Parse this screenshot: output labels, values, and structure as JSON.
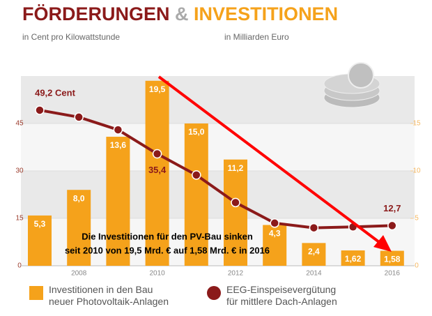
{
  "chart_data": {
    "type": "bar-line",
    "title": [
      "FÖRDERUNGEN",
      "&",
      "INVESTITIONEN"
    ],
    "left_subtitle": "in Cent pro Kilowattstunde",
    "right_subtitle": "in Milliarden Euro",
    "categories": [
      null,
      "2008",
      null,
      "2010",
      null,
      "2012",
      null,
      "2014",
      null,
      "2016"
    ],
    "series": [
      {
        "name": "Investitionen in den Bau neuer Photovoltaik-Anlagen",
        "color": "#f5a21b",
        "kind": "bar",
        "axis": "y2",
        "values": [
          5.3,
          8.0,
          13.6,
          19.5,
          15.0,
          11.2,
          4.3,
          2.4,
          1.62,
          1.58
        ],
        "value_labels": [
          "5,3",
          "8,0",
          "13,6",
          "19,5",
          "15,0",
          "11,2",
          "4,3",
          "2,4",
          "1,62",
          "1,58"
        ]
      },
      {
        "name": "EEG-Einspeisevergütung für mittlere Dach-Anlagen",
        "color": "#8b1a1a",
        "kind": "line",
        "axis": "y",
        "values": [
          49.2,
          47.0,
          43.0,
          35.4,
          28.7,
          20.0,
          13.5,
          12.0,
          12.3,
          12.7
        ],
        "value_labels": [
          "49,2 Cent",
          null,
          null,
          "35,4",
          null,
          null,
          null,
          null,
          null,
          "12,7"
        ]
      }
    ],
    "ylim": [
      0,
      60
    ],
    "yticks": [
      0,
      15,
      30,
      45
    ],
    "y2lim": [
      0,
      20
    ],
    "y2ticks": [
      0,
      5,
      10,
      15
    ],
    "annotation": [
      "Die Investitionen für den PV-Bau sinken",
      "seit 2010 von 19,5 Mrd. € auf 1,58 Mrd. €  in 2016"
    ]
  }
}
